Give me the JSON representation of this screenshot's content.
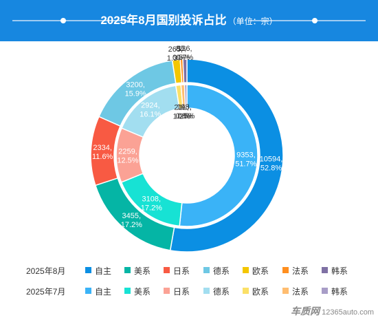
{
  "header": {
    "title": "2025年8月国别投诉占比",
    "unit": "（单位：宗）"
  },
  "chart_data": {
    "type": "pie",
    "categories": [
      "自主",
      "美系",
      "日系",
      "德系",
      "欧系",
      "法系",
      "韩系"
    ],
    "series": [
      {
        "name": "2025年8月",
        "ring": "outer",
        "values": [
          10594,
          3455,
          2334,
          3200,
          265,
          88,
          136
        ],
        "labels": [
          "10594,\n52.8%",
          "3455,\n17.2%",
          "2334,\n11.6%",
          "3200,\n15.9%",
          "265,\n1.3%",
          "88,\n0.5%",
          "136,\n0.7%"
        ],
        "colors": [
          "#0b8fe3",
          "#05b5a5",
          "#f85a43",
          "#6ec8e4",
          "#f4c600",
          "#ff8f1f",
          "#7f71a4"
        ]
      },
      {
        "name": "2025年7月",
        "ring": "inner",
        "values": [
          9353,
          3108,
          2259,
          2924,
          212,
          146,
          98
        ],
        "labels": [
          "9353,\n51.7%",
          "3108,\n17.2%",
          "2259,\n12.5%",
          "2924,\n16.1%",
          "212,\n1.2%",
          "146,\n0.8%",
          "98,\n0.5%"
        ],
        "colors": [
          "#3ab3f7",
          "#17e2d4",
          "#fba295",
          "#a2def0",
          "#fbe067",
          "#ffbd70",
          "#a89dc7"
        ]
      }
    ],
    "legend_position": "bottom"
  },
  "legend": {
    "rows": [
      {
        "label": "2025年8月",
        "items": [
          "自主",
          "美系",
          "日系",
          "德系",
          "欧系",
          "法系",
          "韩系"
        ]
      },
      {
        "label": "2025年7月",
        "items": [
          "自主",
          "美系",
          "日系",
          "德系",
          "欧系",
          "法系",
          "韩系"
        ]
      }
    ]
  },
  "footer": {
    "brand": "车质网",
    "site": "12365auto.com"
  }
}
